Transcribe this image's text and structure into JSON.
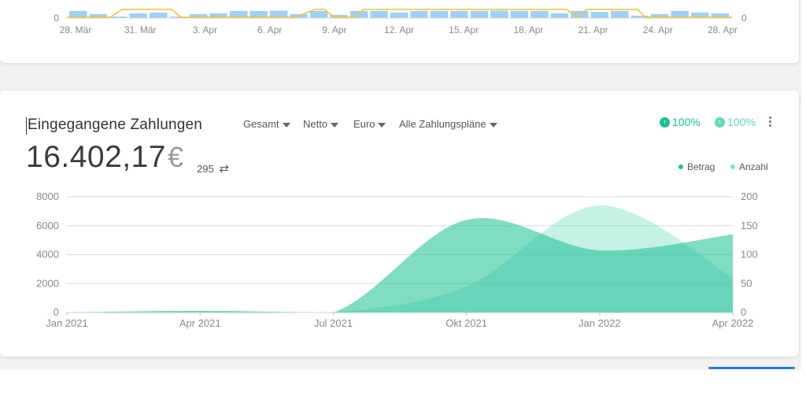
{
  "top_chart": {
    "y_left_zero": "0",
    "y_right_zero": "0",
    "x_ticks": [
      "28. Mär",
      "31. Mär",
      "3. Apr",
      "6. Apr",
      "9. Apr",
      "12. Apr",
      "15. Apr",
      "18. Apr",
      "21. Apr",
      "24. Apr",
      "28. Apr"
    ],
    "bar_levels": [
      0.9,
      0.5,
      0.2,
      0.6,
      0.7,
      0.2,
      0.5,
      0.6,
      0.9,
      0.9,
      0.95,
      0.5,
      0.9,
      0.4,
      0.9,
      0.9,
      0.7,
      0.9,
      0.9,
      0.9,
      0.9,
      0.95,
      0.9,
      0.9,
      0.6,
      0.9,
      0.8,
      0.9,
      0.3,
      0.5,
      0.9,
      0.7,
      0.6
    ]
  },
  "payments": {
    "title": "Eingegangene Zahlungen",
    "filters": [
      "Gesamt",
      "Netto",
      "Euro",
      "Alle Zahlungspläne"
    ],
    "total_amount": "16.402,17",
    "currency_symbol": "€",
    "transaction_count": "295",
    "swap_icon": "swap-arrows-icon",
    "change_amount": "100%",
    "change_count": "100%",
    "legend": [
      "Betrag",
      "Anzahl"
    ],
    "colors": {
      "betrag": "#19bf93",
      "anzahl": "#7ee3c6",
      "accent_up": "#19bf93",
      "accent_up_light": "#64d9b8"
    }
  },
  "chart_data": {
    "type": "area",
    "x": [
      "Jan 2021",
      "Apr 2021",
      "Jul 2021",
      "Okt 2021",
      "Jan 2022",
      "Apr 2022"
    ],
    "y_left_ticks": [
      "0",
      "2000",
      "4000",
      "6000",
      "8000"
    ],
    "y_right_ticks": [
      "0",
      "50",
      "100",
      "150",
      "200"
    ],
    "ylim_left": [
      0,
      8000
    ],
    "ylim_right": [
      0,
      200
    ],
    "series": [
      {
        "name": "Betrag",
        "axis": "left",
        "values": [
          0,
          100,
          0,
          6400,
          4300,
          5400
        ]
      },
      {
        "name": "Anzahl",
        "axis": "right",
        "values": [
          0,
          3,
          0,
          45,
          185,
          60
        ]
      }
    ],
    "grid": true,
    "legend_position": "top-right"
  }
}
